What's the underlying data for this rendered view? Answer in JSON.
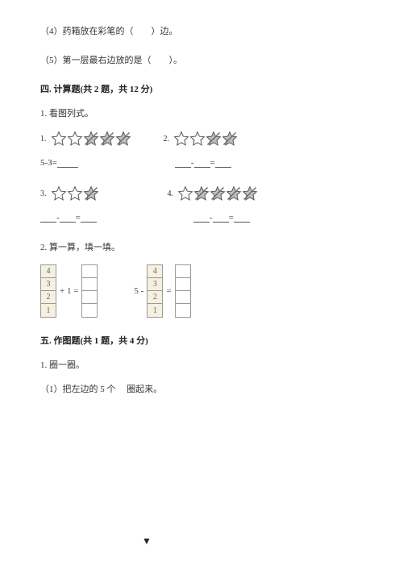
{
  "q4": "（4）药箱放在彩笔的（　　）边。",
  "q5": "（5）第一层最右边放的是（　　）。",
  "section4": {
    "title": "四. 计算题(共 2 题，共 12 分)",
    "p1": "1. 看图列式。",
    "labels": {
      "n1": "1.",
      "n2": "2.",
      "n3": "3.",
      "n4": "4."
    },
    "eq1": "5-3=",
    "p2": "2. 算一算，填一填。",
    "stackA": [
      "4",
      "3",
      "2",
      "1"
    ],
    "stackB": [
      "4",
      "3",
      "2",
      "1"
    ],
    "opA": "+ 1 =",
    "opB": "5 -",
    "opEq": "="
  },
  "section5": {
    "title": "五. 作图题(共 1 题，共 4 分)",
    "p1": "1. 圈一圈。",
    "sub1": "（1）把左边的 5 个　 圈起来。"
  },
  "style": {
    "star_fill_open": "#ffffff",
    "star_fill_shaded": "#bfbfbf",
    "star_stroke": "#555555",
    "strike_color": "#666666",
    "star_size": 20
  }
}
